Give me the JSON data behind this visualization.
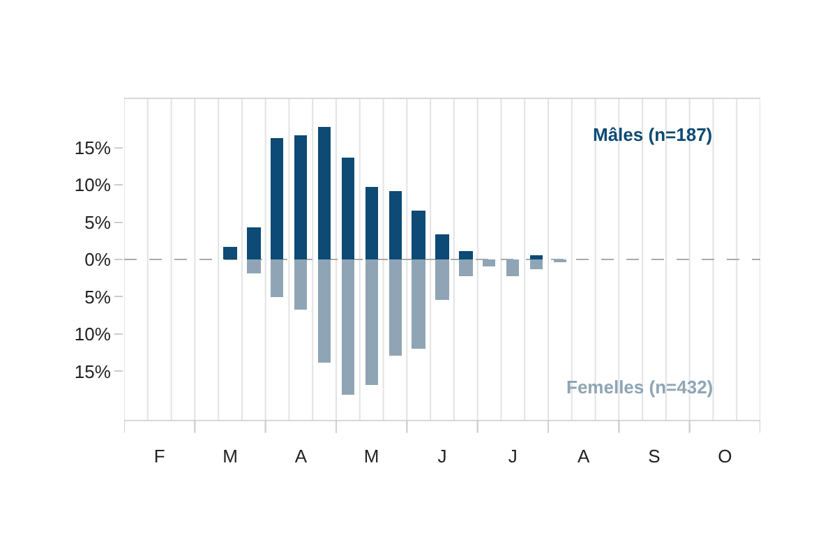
{
  "chart_data": {
    "type": "bar",
    "stacked": true,
    "categories": [
      null,
      "F",
      null,
      null,
      "M",
      null,
      null,
      "A",
      null,
      null,
      "M",
      null,
      null,
      "J",
      null,
      null,
      "J",
      null,
      null,
      "A",
      null,
      null,
      "S",
      null,
      null,
      "O",
      null
    ],
    "series": [
      {
        "name": "Mâles (n=187)",
        "color": "#0d4a75",
        "values": [
          0,
          0,
          0,
          0,
          1.6,
          4.3,
          16.2,
          16.7,
          17.8,
          13.6,
          9.7,
          9.2,
          6.5,
          3.3,
          1.1,
          0,
          0,
          0.6,
          0,
          0,
          0,
          0,
          0,
          0,
          0,
          0,
          0
        ]
      },
      {
        "name": "Femelles (n=432)",
        "color": "#8fa5b5",
        "values": [
          0,
          0,
          0,
          0,
          0,
          -1.9,
          -5.1,
          -6.8,
          -13.8,
          -18.1,
          -16.9,
          -12.9,
          -11.9,
          -5.4,
          -2.3,
          -0.9,
          -2.3,
          -1.3,
          -0.4,
          0,
          0,
          0,
          0,
          0,
          0,
          0,
          0
        ]
      }
    ],
    "ylim": [
      -21.5,
      21.5
    ],
    "yticks": [
      {
        "value": 15,
        "label": "15%"
      },
      {
        "value": 10,
        "label": "10%"
      },
      {
        "value": 5,
        "label": "5%"
      },
      {
        "value": 0,
        "label": "0%"
      },
      {
        "value": -5,
        "label": "5%"
      },
      {
        "value": -10,
        "label": "10%"
      },
      {
        "value": -15,
        "label": "15%"
      }
    ],
    "ref_lines": [
      {
        "axis": "y",
        "value": 0,
        "label": null,
        "color": "#aaaaaa",
        "line_style": "dashed"
      }
    ],
    "grid": "x",
    "legend": false
  }
}
